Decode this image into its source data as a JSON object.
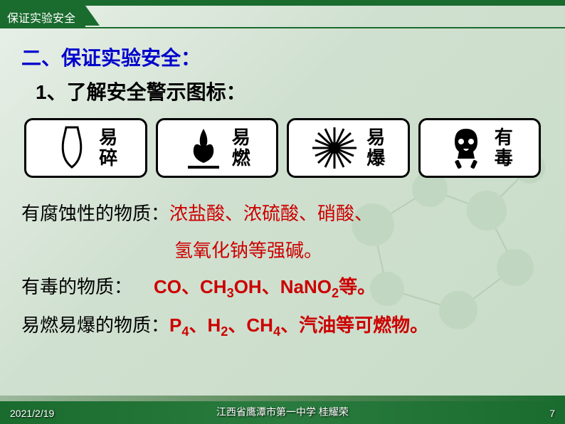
{
  "header": {
    "tab_title": "保证实验安全"
  },
  "section": {
    "title": "二、保证实验安全：",
    "sub_title": "1、了解安全警示图标："
  },
  "hazard_icons": [
    {
      "name": "fragile-icon",
      "label": "易碎"
    },
    {
      "name": "flammable-icon",
      "label": "易燃"
    },
    {
      "name": "explosive-icon",
      "label": "易爆"
    },
    {
      "name": "toxic-icon",
      "label": "有毒"
    }
  ],
  "substances": {
    "corrosive": {
      "label": "有腐蚀性的物质：",
      "value": "浓盐酸、浓硫酸、硝酸、",
      "value_cont": "氢氧化钠等强碱。"
    },
    "toxic": {
      "label": "有毒的物质：",
      "value_html": "CO、CH<sub>3</sub>OH、NaNO<sub>2</sub>等。"
    },
    "flammable": {
      "label": "易燃易爆的物质：",
      "value_html": "P<sub>4</sub>、H<sub>2</sub>、CH<sub>4</sub>、汽油等可燃物。"
    }
  },
  "footer": {
    "date": "2021/2/19",
    "center": "江西省鹰潭市第一中学 桂耀荣",
    "page": "7"
  },
  "colors": {
    "brand_green": "#1a6b2e",
    "title_blue": "#0000cc",
    "value_red": "#cc0000",
    "bg_light": "#e8f0e8"
  }
}
